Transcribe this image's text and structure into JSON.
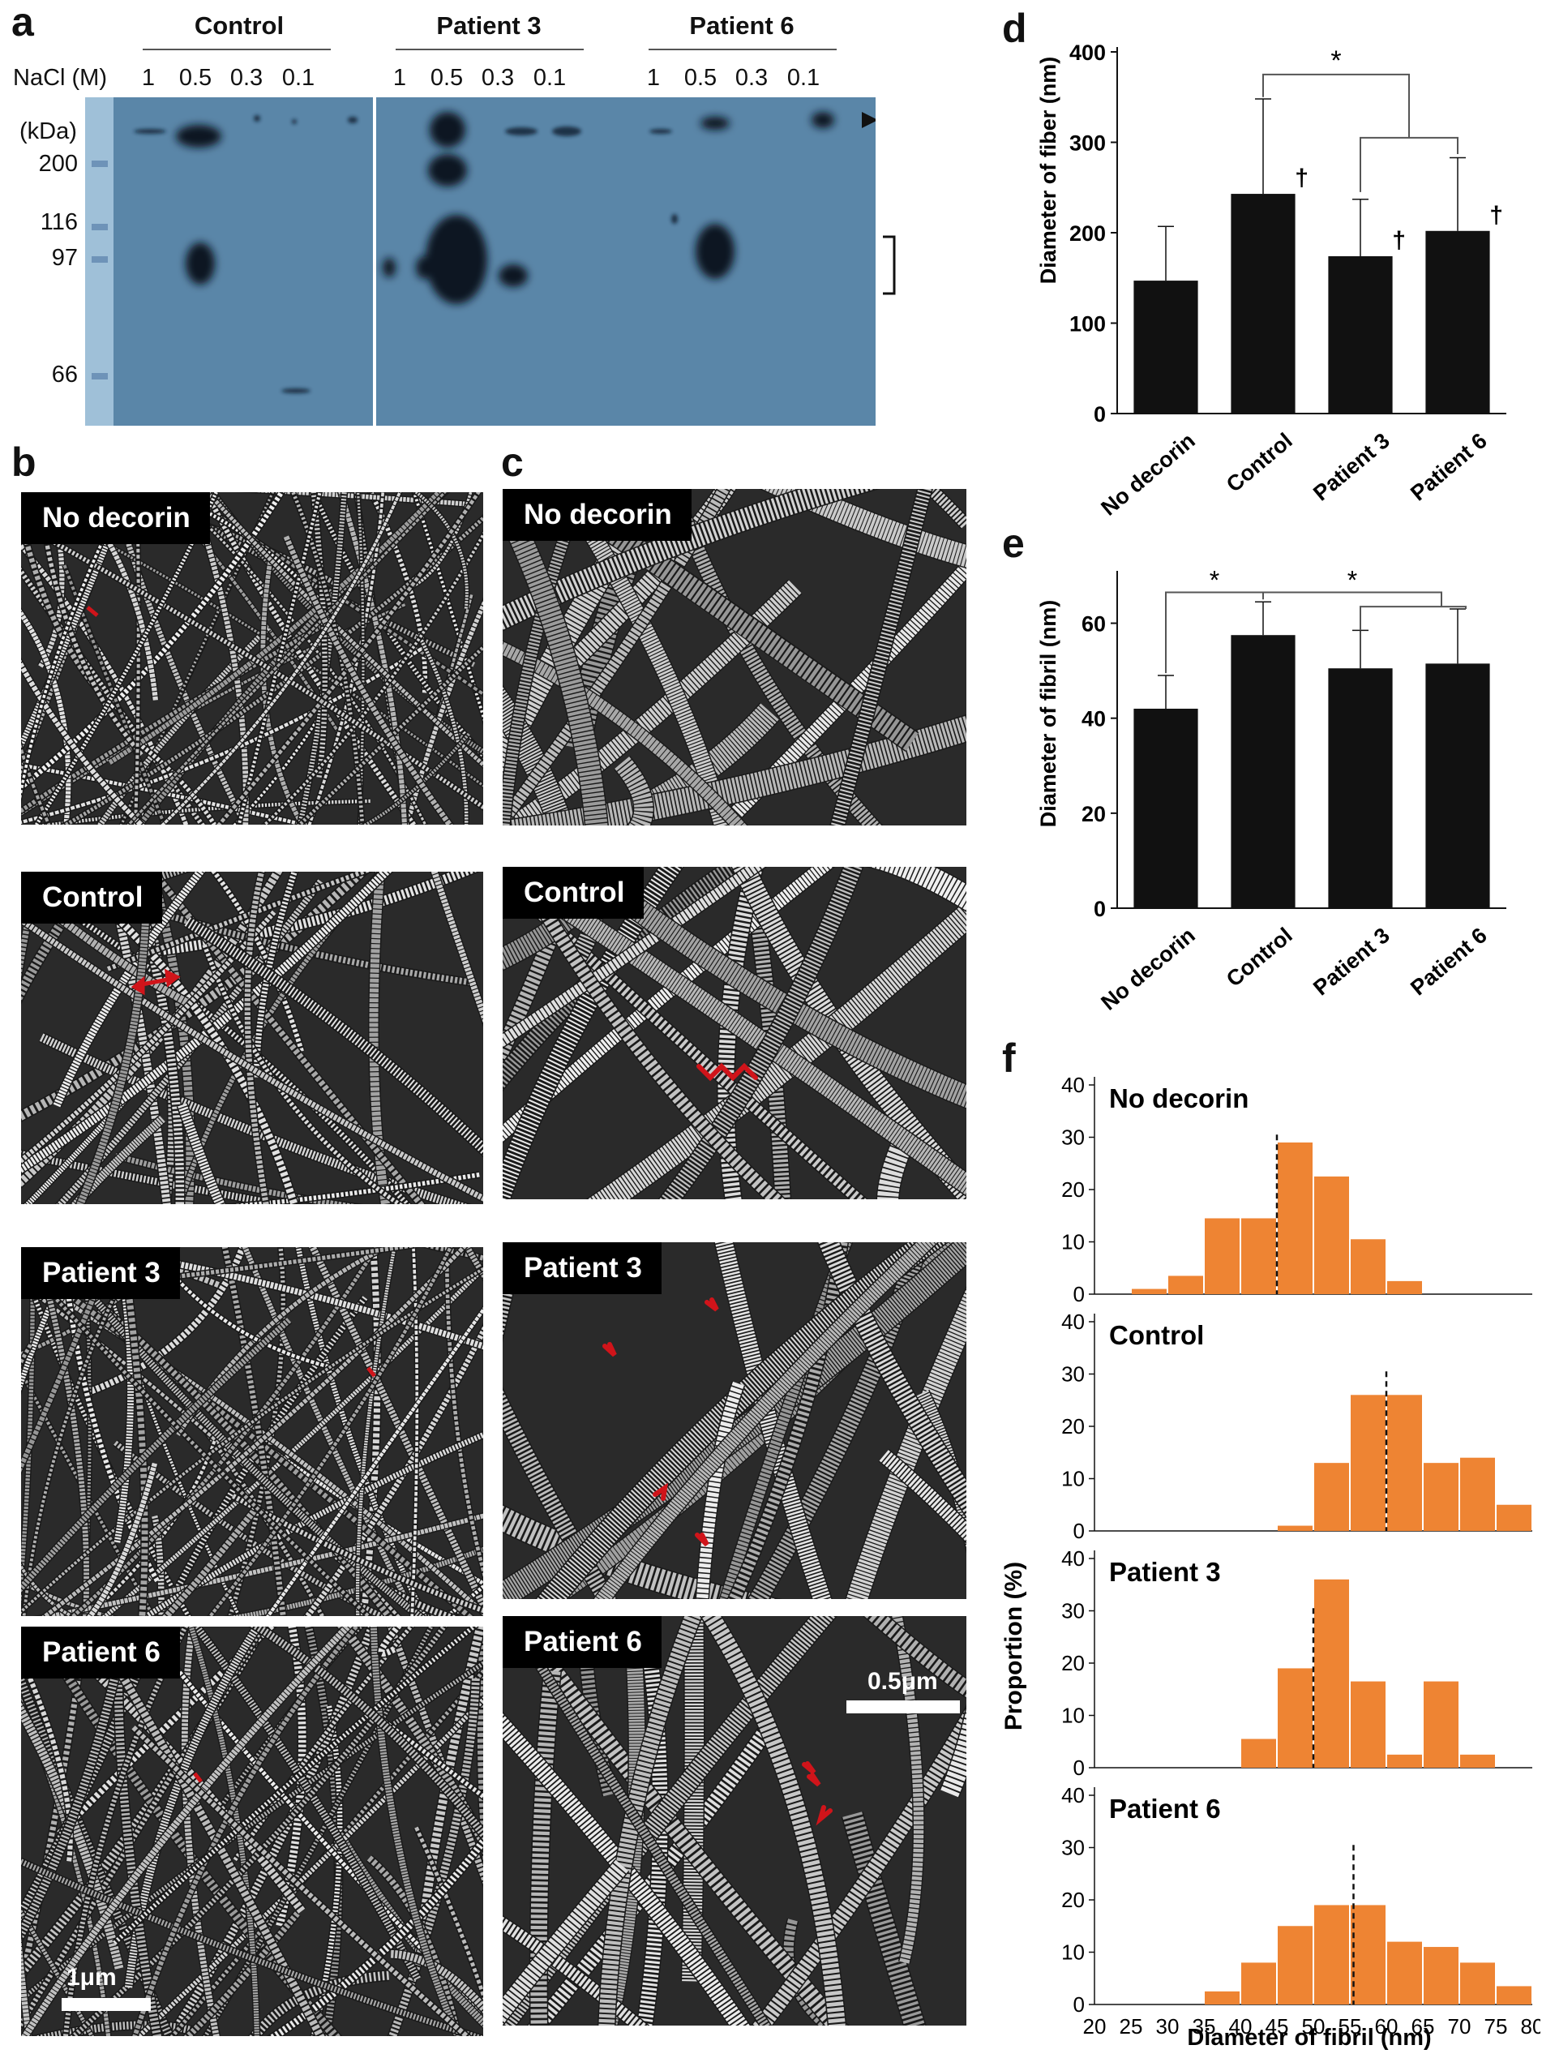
{
  "panel_a": {
    "letter": "a",
    "nacl_label": "NaCl (M)",
    "kda_label": "(kDa)",
    "groups": [
      {
        "name": "Control",
        "lanes": [
          "1",
          "0.5",
          "0.3",
          "0.1"
        ]
      },
      {
        "name": "Patient 3",
        "lanes": [
          "1",
          "0.5",
          "0.3",
          "0.1"
        ]
      },
      {
        "name": "Patient 6",
        "lanes": [
          "1",
          "0.5",
          "0.3",
          "0.1"
        ]
      }
    ],
    "markers": [
      "200",
      "116",
      "97",
      "66"
    ]
  },
  "panel_b": {
    "letter": "b",
    "labels": [
      "No decorin",
      "Control",
      "Patient 3",
      "Patient 6"
    ],
    "scale": "1μm"
  },
  "panel_c": {
    "letter": "c",
    "labels": [
      "No decorin",
      "Control",
      "Patient 3",
      "Patient 6"
    ],
    "scale": "0.5μm"
  },
  "colors": {
    "bar_dark": "#111111",
    "hist_orange": "#EE8433",
    "blot_blue": "#5a86a8",
    "arrow_red": "#d0141a"
  },
  "chart_data": [
    {
      "id": "d",
      "letter": "d",
      "type": "bar",
      "categories": [
        "No decorin",
        "Control",
        "Patient 3",
        "Patient 6"
      ],
      "values": [
        147,
        243,
        174,
        202
      ],
      "errors": [
        60,
        105,
        63,
        81
      ],
      "dagger": [
        false,
        true,
        true,
        true
      ],
      "dagger_symbol": "†",
      "significance": "*",
      "ylabel": "Diameter of fiber (nm)",
      "ylim": [
        0,
        400
      ],
      "yticks": [
        "0",
        "100",
        "200",
        "300",
        "400"
      ]
    },
    {
      "id": "e",
      "letter": "e",
      "type": "bar",
      "categories": [
        "No decorin",
        "Control",
        "Patient 3",
        "Patient 6"
      ],
      "values": [
        42,
        57.5,
        50.5,
        51.5
      ],
      "errors": [
        7,
        7,
        8,
        11.5
      ],
      "significance": "*",
      "ylabel": "Diameter of fibril (nm)",
      "ylim": [
        0,
        70
      ],
      "yticks": [
        "0",
        "20",
        "40",
        "60"
      ]
    },
    {
      "id": "f",
      "letter": "f",
      "type": "bar",
      "xlabel": "Diameter of fibril (nm)",
      "ylabel": "Proportion (%)",
      "xticks": [
        "20",
        "25",
        "30",
        "35",
        "40",
        "45",
        "50",
        "55",
        "60",
        "65",
        "70",
        "75",
        "80"
      ],
      "yticks": [
        "0",
        "10",
        "20",
        "30",
        "40"
      ],
      "ylim": [
        0,
        40
      ],
      "bin_width": 5,
      "panels": [
        {
          "title": "No decorin",
          "bin_starts": [
            25,
            30,
            35,
            40,
            45,
            50,
            55,
            60
          ],
          "values": [
            1,
            3.5,
            14.5,
            14.5,
            29,
            22.5,
            10.5,
            2.5
          ],
          "mean": 45
        },
        {
          "title": "Control",
          "bin_starts": [
            45,
            50,
            55,
            60,
            65,
            70,
            75
          ],
          "values": [
            1,
            13,
            26,
            26,
            13,
            14,
            5
          ],
          "mean": 60
        },
        {
          "title": "Patient 3",
          "bin_starts": [
            40,
            45,
            50,
            55,
            60,
            65,
            70
          ],
          "values": [
            5.5,
            19,
            36,
            16.5,
            2.5,
            16.5,
            2.5
          ],
          "mean": 50
        },
        {
          "title": "Patient 6",
          "bin_starts": [
            35,
            40,
            45,
            50,
            55,
            60,
            65,
            70,
            75
          ],
          "values": [
            2.5,
            8,
            15,
            19,
            19,
            12,
            11,
            8,
            3.5
          ],
          "mean": 55.5
        }
      ]
    }
  ]
}
